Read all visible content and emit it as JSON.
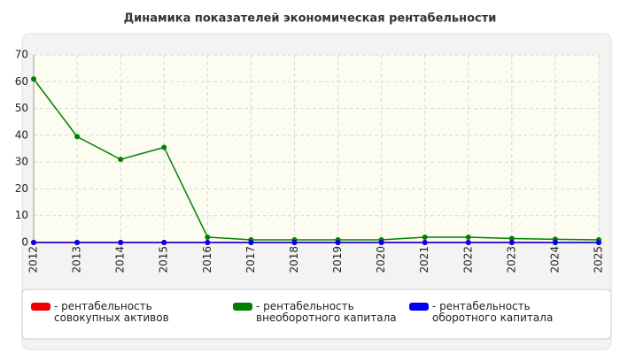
{
  "chart_data": {
    "type": "line",
    "title": "Динамика показателей экономическая рентабельности",
    "categories": [
      "2012",
      "2013",
      "2014",
      "2015",
      "2016",
      "2017",
      "2018",
      "2019",
      "2020",
      "2021",
      "2022",
      "2023",
      "2024",
      "2025"
    ],
    "series": [
      {
        "name": "- рентабельность совокупных активов",
        "color": "#ee0000",
        "values": [
          0,
          0,
          0,
          0,
          0,
          0,
          0,
          0,
          0,
          0,
          0,
          0,
          0,
          0
        ]
      },
      {
        "name": "- рентабельность внеоборотного капитала",
        "color": "#008000",
        "values": [
          61,
          39.5,
          31,
          35.5,
          2,
          1,
          1,
          1,
          1,
          2,
          2,
          1.5,
          1.2,
          1
        ]
      },
      {
        "name": "- рентабельность оборотного капитала",
        "color": "#0000ee",
        "values": [
          0,
          0,
          0,
          0,
          0,
          0,
          0,
          0,
          0,
          0,
          0,
          0,
          0,
          0
        ]
      }
    ],
    "ylim": [
      0,
      70
    ],
    "yticks": [
      0,
      10,
      20,
      30,
      40,
      50,
      60,
      70
    ],
    "grid": true
  }
}
